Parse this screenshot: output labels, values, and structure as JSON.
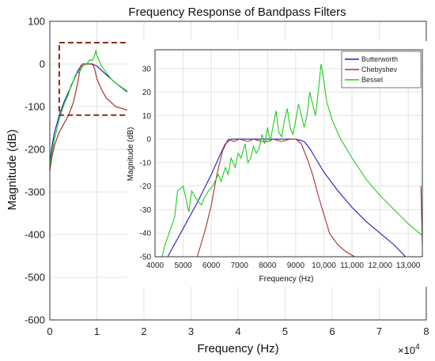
{
  "chart_data": [
    {
      "type": "line",
      "title": "Frequency Response of Bandpass Filters",
      "xlabel": "Frequency (Hz)",
      "ylabel": "Magnitude (dB)",
      "x_multiplier_label": "×10",
      "x_multiplier_exp": "4",
      "xlim": [
        0,
        80000
      ],
      "ylim": [
        -600,
        100
      ],
      "xticks": [
        0,
        10000,
        20000,
        30000,
        40000,
        50000,
        60000,
        70000,
        80000
      ],
      "xtick_labels": [
        "0",
        "1",
        "2",
        "3",
        "4",
        "5",
        "6",
        "7",
        "8"
      ],
      "yticks": [
        -600,
        -500,
        -400,
        -300,
        -200,
        -100,
        0,
        100
      ],
      "ytick_labels": [
        "-600",
        "-500",
        "-400",
        "-300",
        "-200",
        "-100",
        "0",
        "100"
      ],
      "grid": true,
      "series": [
        {
          "color": "#1f1fbf",
          "x": [
            0,
            500,
            1000,
            2000,
            3000,
            4000,
            5000,
            6000,
            7000,
            8000,
            9000,
            10000,
            12000,
            14000,
            17000,
            20000,
            25000,
            30000,
            40000,
            50000,
            60000,
            70000,
            78000,
            79000,
            79500,
            80000
          ],
          "y": [
            -230,
            -190,
            -160,
            -120,
            -90,
            -65,
            -40,
            -15,
            0,
            0,
            0,
            -5,
            -25,
            -45,
            -70,
            -95,
            -120,
            -140,
            -170,
            -190,
            -210,
            -225,
            -230,
            -200,
            -190,
            -200
          ]
        },
        {
          "color": "#a83232",
          "x": [
            0,
            500,
            1000,
            2000,
            3000,
            4000,
            5000,
            6000,
            6500,
            7000,
            8000,
            9000,
            9500,
            10000,
            11000,
            12000,
            14000,
            17000,
            20000,
            25000,
            30000,
            40000,
            50000,
            60000,
            70000,
            78000,
            79000,
            79500,
            80000
          ],
          "y": [
            -250,
            -215,
            -190,
            -160,
            -140,
            -120,
            -90,
            -40,
            -5,
            0,
            0,
            0,
            -10,
            -35,
            -60,
            -80,
            -100,
            -110,
            -115,
            -125,
            -140,
            -165,
            -190,
            -215,
            -240,
            -270,
            -240,
            -230,
            -260
          ]
        },
        {
          "color": "#22cc22",
          "x": [
            0,
            500,
            1000,
            2000,
            3000,
            4000,
            4500,
            5000,
            5500,
            6000,
            6500,
            7000,
            7500,
            8000,
            8500,
            9000,
            9500,
            9800,
            10000,
            11000,
            12000,
            13000,
            14000,
            16000,
            18000,
            20000,
            25000,
            30000,
            40000,
            50000,
            60000,
            70000,
            78000,
            79000,
            79500,
            80000
          ],
          "y": [
            -240,
            -205,
            -175,
            -130,
            -95,
            -70,
            -50,
            -40,
            -25,
            -20,
            -15,
            -5,
            -2,
            2,
            10,
            8,
            20,
            32,
            20,
            -5,
            -20,
            -35,
            -45,
            -60,
            -75,
            -88,
            -110,
            -130,
            -160,
            -190,
            -230,
            -270,
            -300,
            -280,
            -260,
            -300
          ]
        }
      ],
      "zoom_box": {
        "x": [
          2000,
          17000
        ],
        "y": [
          -120,
          50
        ]
      }
    },
    {
      "type": "line",
      "xlabel": "Frequency (Hz)",
      "ylabel": "Magnitude (dB)",
      "xlim": [
        4000,
        13500
      ],
      "ylim": [
        -50,
        38
      ],
      "xticks": [
        4000,
        5000,
        6000,
        7000,
        8000,
        9000,
        10000,
        11000,
        12000,
        13000
      ],
      "xtick_labels": [
        "4000",
        "5000",
        "6000",
        "7000",
        "8000",
        "9000",
        "10,000",
        "11,000",
        "12,000",
        "13,000"
      ],
      "yticks": [
        -50,
        -40,
        -30,
        -20,
        -10,
        0,
        10,
        20,
        30
      ],
      "ytick_labels": [
        "-50",
        "-40",
        "-30",
        "-20",
        "-10",
        "0",
        "10",
        "20",
        "30"
      ],
      "grid": true,
      "legend": "top-right",
      "series": [
        {
          "name": "Butterworth",
          "color": "#1f1fbf",
          "x": [
            4450,
            5000,
            5500,
            6000,
            6300,
            6500,
            6700,
            7000,
            8000,
            8500,
            9000,
            9300,
            9500,
            9700,
            10000,
            10500,
            11000,
            11500,
            12000,
            12500,
            12900
          ],
          "y": [
            -50,
            -38,
            -27,
            -15,
            -7,
            -2,
            0,
            0,
            0,
            0,
            0,
            -1,
            -4,
            -8,
            -14,
            -22,
            -29,
            -35,
            -40,
            -45,
            -50
          ]
        },
        {
          "name": "Chebyshev",
          "color": "#a83232",
          "x": [
            5500,
            5800,
            6000,
            6200,
            6400,
            6600,
            6800,
            7000,
            7300,
            7500,
            7800,
            8000,
            8200,
            8500,
            8800,
            9000,
            9200,
            9400,
            9600,
            9800,
            10000,
            10200,
            10500,
            10800,
            11100
          ],
          "y": [
            -50,
            -38,
            -28,
            -15,
            -5,
            0,
            -1,
            0,
            -1,
            0,
            -1,
            -1,
            0,
            -1,
            0,
            0,
            -2,
            -8,
            -15,
            -24,
            -32,
            -40,
            -45,
            -48,
            -50
          ]
        },
        {
          "name": "Bessel",
          "color": "#22cc22",
          "x": [
            4250,
            4350,
            4500,
            4700,
            4800,
            5000,
            5200,
            5300,
            5500,
            5650,
            5750,
            5900,
            6050,
            6250,
            6350,
            6500,
            6600,
            6700,
            6850,
            6950,
            7050,
            7200,
            7300,
            7400,
            7500,
            7600,
            7700,
            7800,
            7900,
            8000,
            8100,
            8200,
            8300,
            8400,
            8500,
            8600,
            8700,
            8800,
            8900,
            9000,
            9100,
            9200,
            9300,
            9400,
            9500,
            9600,
            9700,
            9800,
            9900,
            10000,
            10100,
            10300,
            10600,
            11000,
            11500,
            12000,
            12500,
            13000,
            13500
          ],
          "y": [
            -50,
            -45,
            -40,
            -33,
            -22,
            -20,
            -31,
            -22,
            -26,
            -28,
            -25,
            -22,
            -20,
            -15,
            -18,
            -12,
            -15,
            -8,
            -12,
            -6,
            -8,
            -2,
            -10,
            -8,
            -3,
            -6,
            -4,
            2,
            -2,
            5,
            -1,
            6,
            12,
            3,
            1,
            8,
            13,
            5,
            2,
            8,
            15,
            10,
            5,
            10,
            20,
            15,
            10,
            20,
            32,
            25,
            16,
            8,
            0,
            -8,
            -17,
            -24,
            -30,
            -36,
            -41
          ]
        }
      ],
      "edge_fragment": {
        "x": [
          13450,
          13500
        ],
        "y": [
          -20,
          -45
        ]
      }
    }
  ]
}
